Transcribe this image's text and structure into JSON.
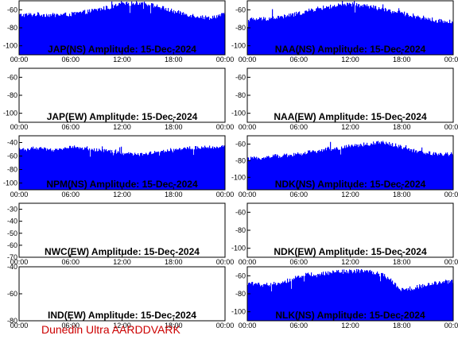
{
  "colors": {
    "series": "#0000ff",
    "frame": "#000000",
    "footer": "#cc0000",
    "background": "#ffffff"
  },
  "footer": {
    "text": "Dunedin Ultra AARDDVARK"
  },
  "chart_data": [
    {
      "type": "area",
      "title": "JAP(NS) Amplitude: 15-Dec-2024",
      "x_ticks": [
        "00:00",
        "06:00",
        "12:00",
        "18:00",
        "00:00"
      ],
      "ylim": [
        -110,
        -50
      ],
      "y_ticks": [
        -60,
        -80,
        -100
      ],
      "x": [
        0,
        2,
        4,
        6,
        8,
        10,
        12,
        14,
        16,
        18,
        20,
        22,
        24
      ],
      "series": [
        {
          "values": [
            -66,
            -65,
            -66,
            -65,
            -62,
            -58,
            -54,
            -52,
            -56,
            -62,
            -66,
            -69,
            -65
          ]
        }
      ]
    },
    {
      "type": "area",
      "title": "NAA(NS) Amplitude: 15-Dec-2024",
      "x_ticks": [
        "00:00",
        "06:00",
        "12:00",
        "18:00",
        "00:00"
      ],
      "ylim": [
        -110,
        -50
      ],
      "y_ticks": [
        -60,
        -80,
        -100
      ],
      "x": [
        0,
        2,
        4,
        6,
        8,
        10,
        12,
        14,
        16,
        18,
        20,
        22,
        24
      ],
      "series": [
        {
          "values": [
            -71,
            -70,
            -68,
            -64,
            -59,
            -56,
            -54,
            -56,
            -60,
            -64,
            -68,
            -72,
            -74
          ]
        }
      ]
    },
    {
      "type": "area",
      "title": "JAP(EW) Amplitude: 15-Dec-2024",
      "x_ticks": [
        "00:00",
        "06:00",
        "12:00",
        "18:00",
        "00:00"
      ],
      "ylim": [
        -110,
        -50
      ],
      "y_ticks": [
        -60,
        -80,
        -100
      ],
      "x": [],
      "series": []
    },
    {
      "type": "area",
      "title": "NAA(EW) Amplitude: 15-Dec-2024",
      "x_ticks": [
        "00:00",
        "06:00",
        "12:00",
        "18:00",
        "00:00"
      ],
      "ylim": [
        -110,
        -50
      ],
      "y_ticks": [
        -60,
        -80,
        -100
      ],
      "x": [],
      "series": []
    },
    {
      "type": "area",
      "title": "NPM(NS) Amplitude: 15-Dec-2024",
      "x_ticks": [
        "00:00",
        "06:00",
        "12:00",
        "18:00",
        "00:00"
      ],
      "ylim": [
        -110,
        -30
      ],
      "y_ticks": [
        -40,
        -60,
        -80,
        -100
      ],
      "x": [
        0,
        2,
        4,
        6,
        8,
        10,
        12,
        14,
        16,
        18,
        20,
        22,
        24
      ],
      "series": [
        {
          "values": [
            -50,
            -48,
            -52,
            -46,
            -50,
            -52,
            -56,
            -58,
            -54,
            -50,
            -48,
            -47,
            -46
          ]
        }
      ]
    },
    {
      "type": "area",
      "title": "NDK(NS) Amplitude: 15-Dec-2024",
      "x_ticks": [
        "00:00",
        "06:00",
        "12:00",
        "18:00",
        "00:00"
      ],
      "ylim": [
        -115,
        -50
      ],
      "y_ticks": [
        -60,
        -80,
        -100
      ],
      "x": [
        0,
        2,
        4,
        6,
        8,
        10,
        12,
        14,
        16,
        18,
        20,
        22,
        24
      ],
      "series": [
        {
          "values": [
            -78,
            -76,
            -74,
            -72,
            -68,
            -66,
            -62,
            -60,
            -58,
            -64,
            -70,
            -72,
            -72
          ]
        }
      ]
    },
    {
      "type": "area",
      "title": "NWC(EW) Amplitude: 15-Dec-2024",
      "x_ticks": [
        "00:00",
        "06:00",
        "12:00",
        "18:00",
        "00:00"
      ],
      "ylim": [
        -70,
        -25
      ],
      "y_ticks": [
        -30,
        -40,
        -50,
        -60,
        -70
      ],
      "x": [],
      "series": []
    },
    {
      "type": "area",
      "title": "NDK(EW) Amplitude: 15-Dec-2024",
      "x_ticks": [
        "00:00",
        "06:00",
        "12:00",
        "18:00",
        "00:00"
      ],
      "ylim": [
        -110,
        -50
      ],
      "y_ticks": [
        -60,
        -80,
        -100
      ],
      "x": [],
      "series": []
    },
    {
      "type": "area",
      "title": "IND(EW) Amplitude: 15-Dec-2024",
      "x_ticks": [
        "00:00",
        "06:00",
        "12:00",
        "18:00",
        "00:00"
      ],
      "ylim": [
        -80,
        -40
      ],
      "y_ticks": [
        -40,
        -60,
        -80
      ],
      "x": [],
      "series": []
    },
    {
      "type": "area",
      "title": "NLK(NS) Amplitude: 15-Dec-2024",
      "x_ticks": [
        "00:00",
        "06:00",
        "12:00",
        "18:00",
        "00:00"
      ],
      "ylim": [
        -110,
        -50
      ],
      "y_ticks": [
        -60,
        -80,
        -100
      ],
      "x": [
        0,
        2,
        4,
        6,
        8,
        10,
        12,
        14,
        16,
        18,
        20,
        22,
        24
      ],
      "series": [
        {
          "values": [
            -68,
            -70,
            -68,
            -60,
            -58,
            -56,
            -55,
            -54,
            -60,
            -76,
            -72,
            -68,
            -66
          ]
        }
      ]
    }
  ]
}
